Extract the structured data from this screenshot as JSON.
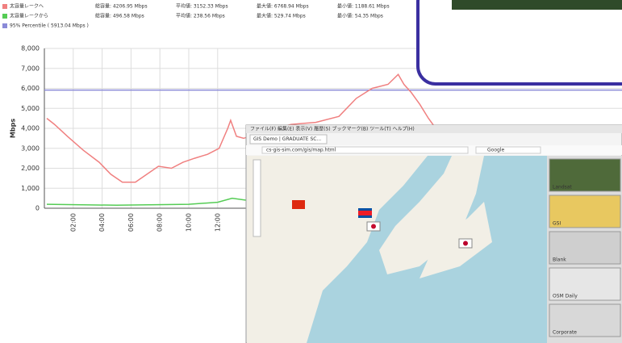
{
  "chart_data": {
    "type": "line",
    "y_label": "Mbps",
    "xlim": [
      0,
      40
    ],
    "ylim": [
      0,
      8000
    ],
    "xticks": [
      {
        "value": 2,
        "label": "02:00"
      },
      {
        "value": 4,
        "label": "04:00"
      },
      {
        "value": 6,
        "label": "06:00"
      },
      {
        "value": 8,
        "label": "08:00"
      },
      {
        "value": 10,
        "label": "10:00"
      },
      {
        "value": 12,
        "label": "12:00"
      }
    ],
    "yticks": [
      0,
      {
        "value": 1000,
        "label": "1,000"
      },
      {
        "value": 2000,
        "label": "2,000"
      },
      {
        "value": 3000,
        "label": "3,000"
      },
      {
        "value": 4000,
        "label": "4,000"
      },
      {
        "value": 5000,
        "label": "5,000"
      },
      {
        "value": 6000,
        "label": "6,000"
      },
      {
        "value": 7000,
        "label": "7,000"
      },
      {
        "value": 8000,
        "label": "8,000"
      }
    ],
    "grid": true,
    "series": [
      {
        "name": "太容量レークへ",
        "color": "#f08080",
        "stats": [
          "総容量: 4206.95 Mbps",
          "平均値: 3152.33 Mbps",
          "最大値: 6768.94 Mbps",
          "最小値: 1188.61 Mbps"
        ],
        "x": [
          0.17,
          0.7,
          1.6,
          2.7,
          3.8,
          4.6,
          5.4,
          6.3,
          7.1,
          7.9,
          8.8,
          9.6,
          10.4,
          11.3,
          12.1,
          12.7,
          12.9,
          13.3,
          13.8,
          15.4,
          17.1,
          18.8,
          20.4,
          21.6,
          22.7,
          23.8,
          24.5,
          24.9,
          25.4,
          26,
          26.6,
          27.1
        ],
        "values": [
          4500,
          4200,
          3600,
          2900,
          2300,
          1700,
          1300,
          1300,
          1700,
          2100,
          2000,
          2300,
          2500,
          2700,
          3000,
          4000,
          4400,
          3600,
          3500,
          3900,
          4200,
          4300,
          4600,
          5500,
          6000,
          6200,
          6700,
          6200,
          5800,
          5200,
          4500,
          4000
        ]
      },
      {
        "name": "太容量レークから",
        "color": "#55cc55",
        "stats": [
          "総容量: 496.58 Mbps",
          "平均値: 238.56 Mbps",
          "最大値: 529.74 Mbps",
          "最小値: 54.35 Mbps"
        ],
        "x": [
          0.17,
          5,
          10,
          12,
          13,
          14,
          20,
          27
        ],
        "values": [
          200,
          150,
          200,
          300,
          500,
          400,
          500,
          500
        ]
      }
    ],
    "percentile": {
      "label": "95% Percentile ( 5913.04 Mbps )",
      "value": 5913.04,
      "color": "#8a8ad8"
    }
  },
  "overlay": {
    "menu": "ファイル(F)  編集(E)  表示(V)  履歴(S)  ブックマーク(B)  ツール(T)  ヘルプ(H)",
    "tab": "GIS Demo | GRADUATE SC...",
    "url": "cs-gis-sim.com/gis/map.html",
    "search": "Google",
    "layers": [
      "Landsat",
      "GSI",
      "Blank",
      "OSM Daily",
      "Corporate"
    ]
  }
}
